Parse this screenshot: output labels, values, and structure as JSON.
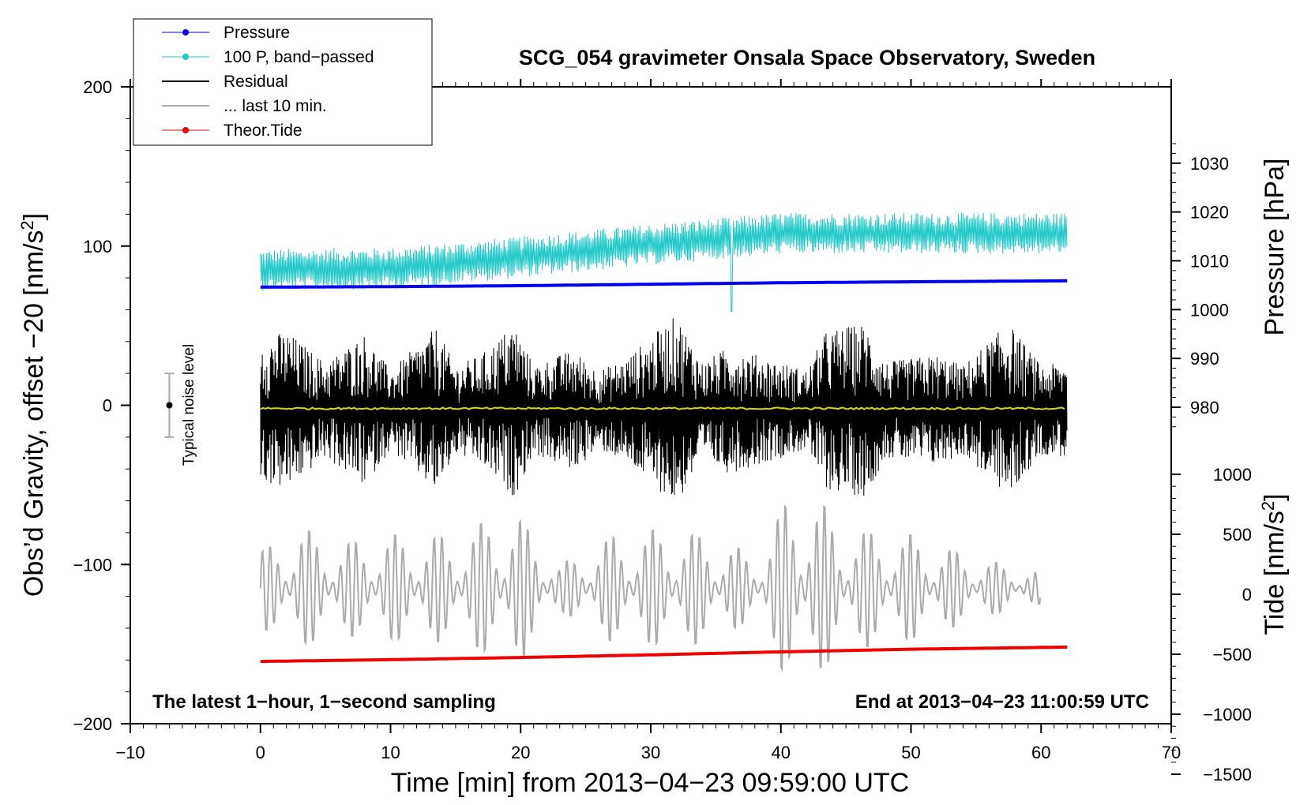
{
  "chart_data": {
    "type": "line",
    "title": "SCG_054 gravimeter Onsala Space Observatory, Sweden",
    "xlabel": "Time [min] from 2013−04−23 09:59:00 UTC",
    "xlim": [
      -10,
      70
    ],
    "x_ticks": [
      -10,
      0,
      10,
      20,
      30,
      40,
      50,
      60,
      70
    ],
    "x_tick_labels": [
      "−10",
      "0",
      "10",
      "20",
      "30",
      "40",
      "50",
      "60",
      "70"
    ],
    "left_axis": {
      "label_main": "Obs’d Gravity, offset −20 [nm/s",
      "label_sup": "2",
      "label_end": "]",
      "ylim": [
        -200,
        200
      ],
      "ticks": [
        -200,
        -100,
        0,
        100,
        200
      ],
      "tick_labels": [
        "−200",
        "−100",
        "0",
        "100",
        "200"
      ]
    },
    "right_pressure_axis": {
      "label": "Pressure [hPa]",
      "ticks": [
        980,
        990,
        1000,
        1010,
        1020,
        1030
      ],
      "tick_labels": [
        "980",
        "990",
        "1000",
        "1010",
        "1020",
        "1030"
      ]
    },
    "right_tide_axis": {
      "label_main": "Tide [nm/s",
      "label_sup": "2",
      "label_end": "]",
      "ticks": [
        -1500,
        -1000,
        -500,
        0,
        500,
        1000
      ],
      "tick_labels": [
        "−1500",
        "−1000",
        "−500",
        "0",
        "500",
        "1000"
      ]
    },
    "legend": {
      "placement": "top-left",
      "entries": [
        {
          "label": "Pressure",
          "color": "#0000ee",
          "marker": "dot"
        },
        {
          "label": "100 P, band−passed",
          "color": "#20c8c8",
          "marker": "dot"
        },
        {
          "label": "Residual",
          "color": "#000000",
          "marker": "none"
        },
        {
          "label": "... last 10 min.",
          "color": "#aaaaaa",
          "marker": "none"
        },
        {
          "label": "Theor.Tide",
          "color": "#ee0000",
          "marker": "dot"
        }
      ]
    },
    "series": [
      {
        "name": "Pressure",
        "axis": "pressure_hPa",
        "color": "#0000ee",
        "x": [
          0,
          10,
          20,
          30,
          40,
          50,
          62
        ],
        "values": [
          1004.6,
          1004.7,
          1004.9,
          1005.2,
          1005.5,
          1005.7,
          1005.9
        ]
      },
      {
        "name": "100 P, band−passed",
        "axis": "left_nm_s2",
        "color": "#20c8c8",
        "x_start": 0,
        "x_end": 62,
        "trend_x": [
          0,
          10,
          20,
          30,
          40,
          50,
          62
        ],
        "trend": [
          85,
          86,
          93,
          101,
          108,
          108,
          108
        ],
        "amplitude": 13,
        "spike": {
          "x": 36.2,
          "min": 59
        }
      },
      {
        "name": "Residual",
        "axis": "left_nm_s2",
        "color": "#000000",
        "x_start": 0,
        "x_end": 62,
        "mean": -3,
        "envelope_x": [
          0,
          2,
          5,
          8,
          10,
          13.5,
          15,
          17,
          19.5,
          21,
          24,
          26,
          28,
          32,
          34,
          36,
          40,
          42,
          43.5,
          46.5,
          48,
          52,
          54,
          57.5,
          60,
          62
        ],
        "envelope": [
          45,
          50,
          30,
          48,
          25,
          52,
          28,
          35,
          55,
          28,
          38,
          25,
          32,
          60,
          30,
          40,
          30,
          25,
          50,
          55,
          30,
          35,
          28,
          55,
          28,
          30
        ]
      },
      {
        "name": "Residual mean",
        "axis": "left_nm_s2",
        "color": "#d8d800",
        "x": [
          0,
          62
        ],
        "values": [
          -2,
          -2
        ]
      },
      {
        "name": "... last 10 min.",
        "axis": "left_nm_s2",
        "color": "#aaaaaa",
        "x_start": 0,
        "x_end": 60,
        "center": -115,
        "envelope_x": [
          0,
          3,
          6,
          10,
          15,
          19.5,
          23,
          27,
          32,
          36,
          38,
          40.5,
          42,
          45,
          50,
          55,
          60
        ],
        "envelope": [
          25,
          40,
          30,
          35,
          35,
          52,
          15,
          35,
          40,
          30,
          20,
          60,
          65,
          40,
          35,
          20,
          10
        ]
      },
      {
        "name": "Theor.Tide",
        "axis": "tide_nm_s2",
        "color": "#ee0000",
        "x": [
          0,
          10,
          20,
          30,
          40,
          50,
          62
        ],
        "values": [
          -560,
          -545,
          -527,
          -505,
          -480,
          -458,
          -440
        ]
      }
    ],
    "annotations": {
      "noise_label": "Typical noise level",
      "noise_bar": {
        "x": -7,
        "center": 0,
        "half_range": 20
      },
      "bottom_left_note": "The latest 1−hour, 1−second sampling",
      "bottom_right_note": "End at 2013−04−23 11:00:59 UTC"
    }
  }
}
